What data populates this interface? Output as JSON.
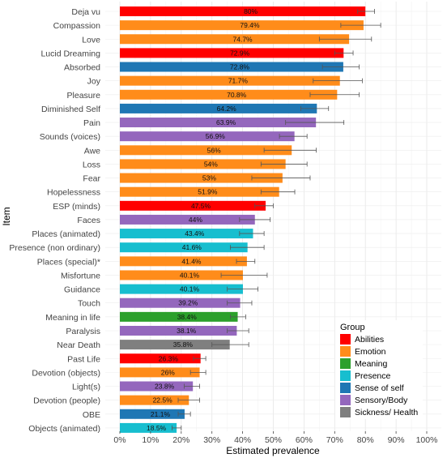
{
  "chart_data": {
    "type": "bar",
    "orientation": "horizontal",
    "xlabel": "Estimated prevalence",
    "ylabel": "Item",
    "xlim": [
      0,
      100
    ],
    "xticks": [
      "0%",
      "10%",
      "20%",
      "30%",
      "40%",
      "50%",
      "60%",
      "70%",
      "80%",
      "90%",
      "100%"
    ],
    "grid": true,
    "legend_position": "bottom-right",
    "legend_title": "Group",
    "groups": [
      {
        "name": "Abilities",
        "color": "#ff0000"
      },
      {
        "name": "Emotion",
        "color": "#ff8c1a"
      },
      {
        "name": "Meaning",
        "color": "#2ca02c"
      },
      {
        "name": "Presence",
        "color": "#17becf"
      },
      {
        "name": "Sense of self",
        "color": "#1f77b4"
      },
      {
        "name": "Sensory/Body",
        "color": "#9467bd"
      },
      {
        "name": "Sickness/ Health",
        "color": "#7f7f7f"
      }
    ],
    "items": [
      {
        "label": "Deja vu",
        "value": 80,
        "value_label": "80%",
        "group": "Abilities",
        "error": [
          77.5,
          83
        ]
      },
      {
        "label": "Compassion",
        "value": 79.4,
        "value_label": "79.4%",
        "group": "Emotion",
        "error": [
          72,
          85
        ]
      },
      {
        "label": "Love",
        "value": 74.7,
        "value_label": "74.7%",
        "group": "Emotion",
        "error": [
          65,
          82
        ]
      },
      {
        "label": "Lucid Dreaming",
        "value": 72.9,
        "value_label": "72.9%",
        "group": "Abilities",
        "error": [
          70,
          76
        ]
      },
      {
        "label": "Absorbed",
        "value": 72.8,
        "value_label": "72.8%",
        "group": "Sense of self",
        "error": [
          66,
          78
        ]
      },
      {
        "label": "Joy",
        "value": 71.7,
        "value_label": "71.7%",
        "group": "Emotion",
        "error": [
          63,
          79
        ]
      },
      {
        "label": "Pleasure",
        "value": 70.8,
        "value_label": "70.8%",
        "group": "Emotion",
        "error": [
          62,
          78
        ]
      },
      {
        "label": "Diminished Self",
        "value": 64.2,
        "value_label": "64.2%",
        "group": "Sense of self",
        "error": [
          59,
          68
        ]
      },
      {
        "label": "Pain",
        "value": 63.9,
        "value_label": "63.9%",
        "group": "Sensory/Body",
        "error": [
          54,
          73
        ]
      },
      {
        "label": "Sounds (voices)",
        "value": 56.9,
        "value_label": "56.9%",
        "group": "Sensory/Body",
        "error": [
          52,
          61
        ]
      },
      {
        "label": "Awe",
        "value": 56,
        "value_label": "56%",
        "group": "Emotion",
        "error": [
          47,
          64
        ]
      },
      {
        "label": "Loss",
        "value": 54,
        "value_label": "54%",
        "group": "Emotion",
        "error": [
          46,
          61
        ]
      },
      {
        "label": "Fear",
        "value": 53,
        "value_label": "53%",
        "group": "Emotion",
        "error": [
          43,
          62
        ]
      },
      {
        "label": "Hopelessness",
        "value": 51.9,
        "value_label": "51.9%",
        "group": "Emotion",
        "error": [
          46,
          57
        ]
      },
      {
        "label": "ESP (minds)",
        "value": 47.5,
        "value_label": "47.5%",
        "group": "Abilities",
        "error": [
          44,
          50
        ]
      },
      {
        "label": "Faces",
        "value": 44,
        "value_label": "44%",
        "group": "Sensory/Body",
        "error": [
          39,
          49
        ]
      },
      {
        "label": "Places (animated)",
        "value": 43.4,
        "value_label": "43.4%",
        "group": "Presence",
        "error": [
          39,
          47
        ]
      },
      {
        "label": "Presence (non ordinary)",
        "value": 41.6,
        "value_label": "41.6%",
        "group": "Presence",
        "error": [
          36,
          47
        ]
      },
      {
        "label": "Places (special)*",
        "value": 41.4,
        "value_label": "41.4%",
        "group": "Emotion",
        "error": [
          38,
          44
        ]
      },
      {
        "label": "Misfortune",
        "value": 40.1,
        "value_label": "40.1%",
        "group": "Emotion",
        "error": [
          33,
          48
        ]
      },
      {
        "label": "Guidance",
        "value": 40.1,
        "value_label": "40.1%",
        "group": "Presence",
        "error": [
          35,
          45
        ]
      },
      {
        "label": "Touch",
        "value": 39.2,
        "value_label": "39.2%",
        "group": "Sensory/Body",
        "error": [
          35,
          43
        ]
      },
      {
        "label": "Meaning in life",
        "value": 38.4,
        "value_label": "38.4%",
        "group": "Meaning",
        "error": [
          36,
          41
        ]
      },
      {
        "label": "Paralysis",
        "value": 38.1,
        "value_label": "38.1%",
        "group": "Sensory/Body",
        "error": [
          35,
          42
        ]
      },
      {
        "label": "Near Death",
        "value": 35.8,
        "value_label": "35.8%",
        "group": "Sickness/ Health",
        "error": [
          30,
          42
        ]
      },
      {
        "label": "Past Life",
        "value": 26.3,
        "value_label": "26.3%",
        "group": "Abilities",
        "error": [
          24,
          28
        ]
      },
      {
        "label": "Devotion (objects)",
        "value": 26,
        "value_label": "26%",
        "group": "Emotion",
        "error": [
          23,
          28
        ]
      },
      {
        "label": "Light(s)",
        "value": 23.8,
        "value_label": "23.8%",
        "group": "Sensory/Body",
        "error": [
          21,
          26
        ]
      },
      {
        "label": "Devotion (people)",
        "value": 22.5,
        "value_label": "22.5%",
        "group": "Emotion",
        "error": [
          19,
          26
        ]
      },
      {
        "label": "OBE",
        "value": 21.1,
        "value_label": "21.1%",
        "group": "Sense of self",
        "error": [
          19,
          23
        ]
      },
      {
        "label": "Objects (animated)",
        "value": 18.5,
        "value_label": "18.5%",
        "group": "Presence",
        "error": [
          17,
          20
        ]
      }
    ]
  }
}
